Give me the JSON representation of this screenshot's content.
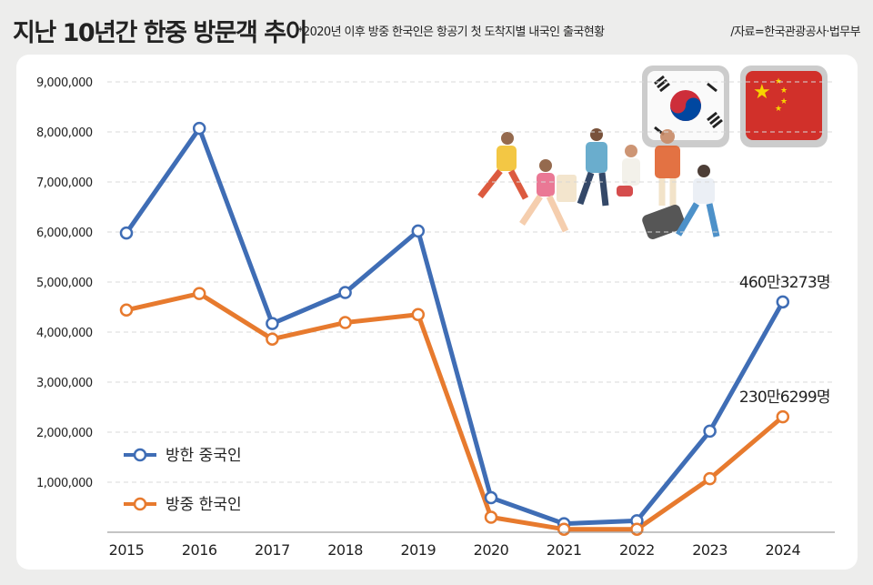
{
  "header": {
    "title": "지난 10년간 한중 방문객 추이",
    "note": "*2020년 이후 방중 한국인은 항공기 첫 도착지별 내국인 출국현황",
    "source": "/자료=한국관광공사·법무부"
  },
  "chart_data": {
    "type": "line",
    "title": "지난 10년간 한중 방문객 추이",
    "categories": [
      "2015",
      "2016",
      "2017",
      "2018",
      "2019",
      "2020",
      "2021",
      "2022",
      "2023",
      "2024"
    ],
    "ylim": [
      0,
      9000000
    ],
    "yticks": [
      "1,000,000",
      "2,000,000",
      "3,000,000",
      "4,000,000",
      "5,000,000",
      "6,000,000",
      "7,000,000",
      "8,000,000",
      "9,000,000"
    ],
    "grid": true,
    "legend_position": "bottom-left",
    "series": [
      {
        "name": "방한 중국인",
        "color": "#3f6db5",
        "values": [
          5980000,
          8070000,
          4170000,
          4790000,
          6020000,
          690000,
          170000,
          230000,
          2020000,
          4603273
        ],
        "end_label": "460만3273명"
      },
      {
        "name": "방중 한국인",
        "color": "#e77a2e",
        "values": [
          4440000,
          4770000,
          3860000,
          4190000,
          4350000,
          300000,
          60000,
          60000,
          1070000,
          2306299
        ],
        "end_label": "230만6299명"
      }
    ]
  }
}
